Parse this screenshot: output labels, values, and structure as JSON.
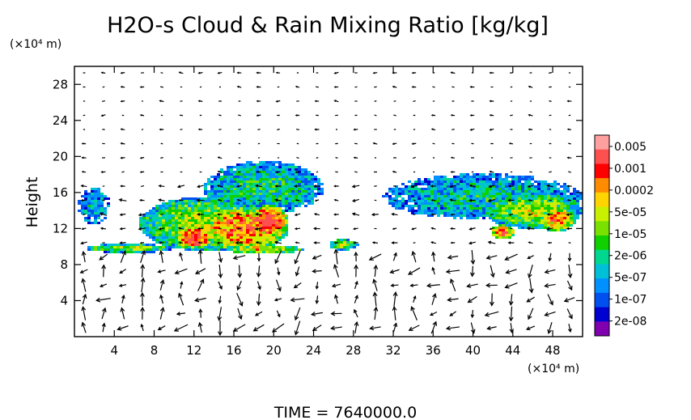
{
  "chart_data": {
    "type": "heatmap",
    "title": "H2O-s Cloud & Rain Mixing Ratio [kg/kg]",
    "ylabel": "Height",
    "y_unit": "(×10⁴ m)",
    "x_unit": "(×10⁴ m)",
    "xlim": [
      0,
      51
    ],
    "ylim": [
      0,
      30
    ],
    "x_ticks": [
      "4",
      "8",
      "12",
      "16",
      "20",
      "24",
      "28",
      "32",
      "36",
      "40",
      "44",
      "48"
    ],
    "x_tick_values": [
      4,
      8,
      12,
      16,
      20,
      24,
      28,
      32,
      36,
      40,
      44,
      48
    ],
    "y_ticks": [
      "4",
      "8",
      "12",
      "16",
      "20",
      "24",
      "28"
    ],
    "y_tick_values": [
      4,
      8,
      12,
      16,
      20,
      24,
      28
    ],
    "colorbar": {
      "labels": [
        "0.005",
        "0.001",
        "0.0002",
        "5e-05",
        "1e-05",
        "2e-06",
        "5e-07",
        "1e-07",
        "2e-08"
      ],
      "colors": [
        "#ffa0a0",
        "#ff5050",
        "#ff0000",
        "#ff8c00",
        "#ffd400",
        "#c8f000",
        "#7ae000",
        "#10d000",
        "#00d890",
        "#00c0d8",
        "#0090ff",
        "#0050f0",
        "#0000d0",
        "#8000b0"
      ]
    },
    "cloud_regions": [
      {
        "x_center": 2.0,
        "y_center": 14.5,
        "x_halfwidth": 1.6,
        "y_halfwidth": 2.0,
        "intensity": 0.3
      },
      {
        "x_center": 5.5,
        "y_center": 9.8,
        "x_halfwidth": 4.5,
        "y_halfwidth": 0.5,
        "intensity": 0.55
      },
      {
        "x_center": 13.0,
        "y_center": 12.5,
        "x_halfwidth": 6.5,
        "y_halfwidth": 3.0,
        "intensity": 0.6
      },
      {
        "x_center": 19.0,
        "y_center": 16.5,
        "x_halfwidth": 6.0,
        "y_halfwidth": 3.0,
        "intensity": 0.4
      },
      {
        "x_center": 17.0,
        "y_center": 12.0,
        "x_halfwidth": 4.5,
        "y_halfwidth": 2.5,
        "intensity": 0.85
      },
      {
        "x_center": 19.5,
        "y_center": 12.8,
        "x_halfwidth": 2.0,
        "y_halfwidth": 1.8,
        "intensity": 1.0
      },
      {
        "x_center": 12.0,
        "y_center": 11.0,
        "x_halfwidth": 2.0,
        "y_halfwidth": 1.3,
        "intensity": 0.95
      },
      {
        "x_center": 19.0,
        "y_center": 9.7,
        "x_halfwidth": 4.0,
        "y_halfwidth": 0.5,
        "intensity": 0.7
      },
      {
        "x_center": 27.0,
        "y_center": 10.2,
        "x_halfwidth": 1.5,
        "y_halfwidth": 0.6,
        "intensity": 0.6
      },
      {
        "x_center": 41.0,
        "y_center": 15.5,
        "x_halfwidth": 10.0,
        "y_halfwidth": 2.6,
        "intensity": 0.35
      },
      {
        "x_center": 46.0,
        "y_center": 14.0,
        "x_halfwidth": 5.0,
        "y_halfwidth": 2.0,
        "intensity": 0.6
      },
      {
        "x_center": 48.5,
        "y_center": 13.0,
        "x_halfwidth": 1.8,
        "y_halfwidth": 1.4,
        "intensity": 0.8
      },
      {
        "x_center": 43.0,
        "y_center": 11.6,
        "x_halfwidth": 1.2,
        "y_halfwidth": 0.8,
        "intensity": 0.85
      }
    ]
  },
  "footer": {
    "time_label": "TIME  =  7640000.0"
  }
}
